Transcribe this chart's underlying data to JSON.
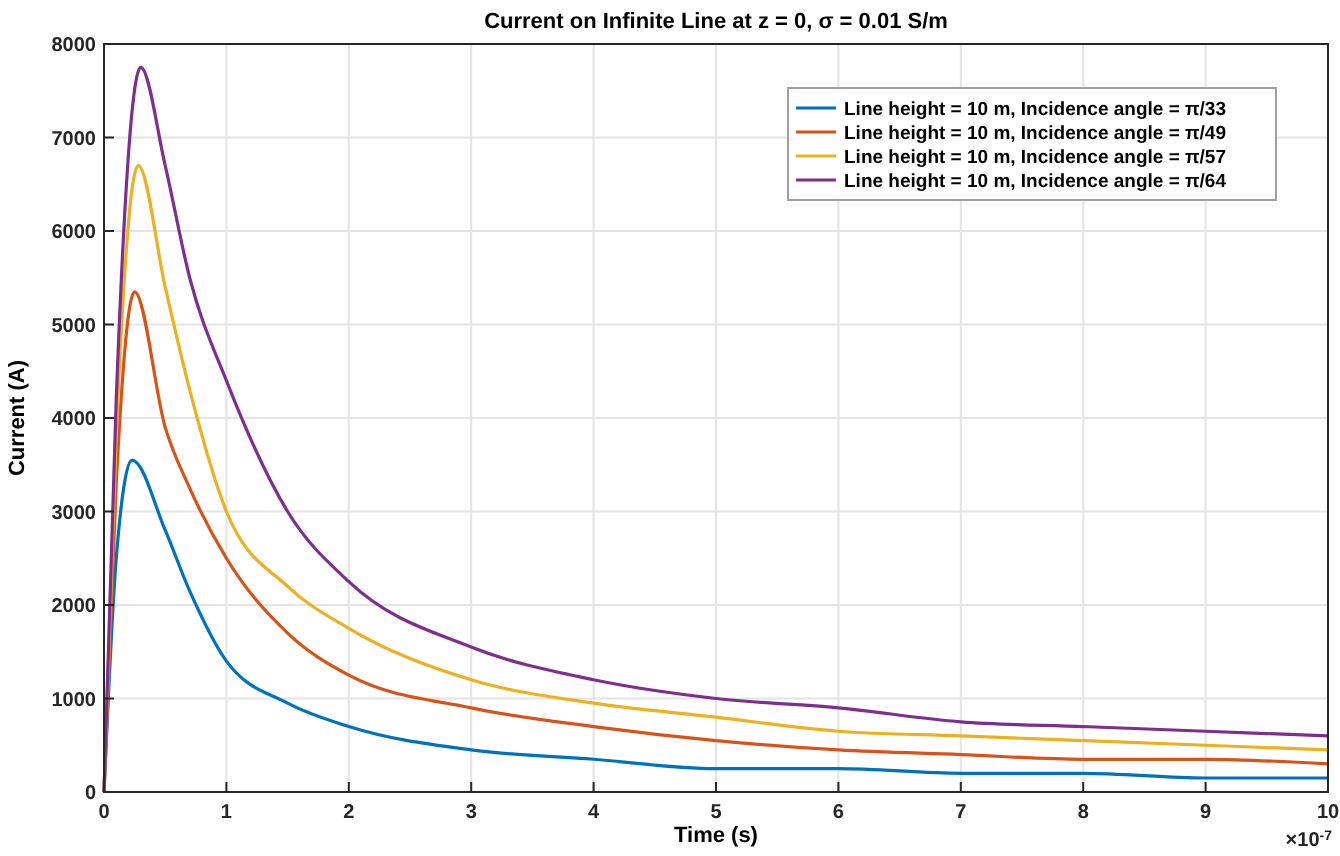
{
  "chart_data": {
    "type": "line",
    "title": "Current on Infinite Line at z = 0, σ = 0.01 S/m",
    "xlabel": "Time (s)",
    "ylabel": "Current (A)",
    "annotations": [
      "×10$^{-7}$"
    ],
    "series": [
      {
        "name": "Line height = 10 m, Incidence angle = π/33",
        "color": "#0072bd",
        "x": [
          0,
          0.1,
          0.23,
          0.5,
          0.7,
          1,
          1.5,
          2,
          3,
          4,
          5,
          6,
          7,
          8,
          9,
          10
        ],
        "values": [
          0,
          2500,
          3550,
          2800,
          2150,
          1400,
          950,
          700,
          450,
          350,
          250,
          250,
          200,
          200,
          150,
          150
        ]
      },
      {
        "name": "Line height = 10 m, Incidence angle = π/49",
        "color": "#d95319",
        "x": [
          0,
          0.1,
          0.25,
          0.5,
          0.7,
          1,
          1.5,
          2,
          3,
          4,
          5,
          6,
          7,
          8,
          9,
          10
        ],
        "values": [
          0,
          3300,
          5350,
          3900,
          3250,
          2500,
          1700,
          1250,
          900,
          700,
          550,
          450,
          400,
          350,
          350,
          300
        ]
      },
      {
        "name": "Line height = 10 m, Incidence angle = π/57",
        "color": "#edb120",
        "x": [
          0,
          0.1,
          0.28,
          0.5,
          0.7,
          1,
          1.5,
          2,
          3,
          4,
          5,
          6,
          7,
          8,
          9,
          10
        ],
        "values": [
          0,
          3800,
          6700,
          5400,
          4300,
          3000,
          2200,
          1750,
          1200,
          950,
          800,
          650,
          600,
          550,
          500,
          450
        ]
      },
      {
        "name": "Line height = 10 m, Incidence angle = π/64",
        "color": "#7e2f8e",
        "x": [
          0,
          0.1,
          0.3,
          0.5,
          0.7,
          1,
          1.5,
          2,
          3,
          4,
          5,
          6,
          7,
          8,
          9,
          10
        ],
        "values": [
          0,
          4200,
          7750,
          6700,
          5500,
          4400,
          3000,
          2250,
          1550,
          1200,
          1000,
          900,
          750,
          700,
          650,
          600
        ]
      }
    ],
    "xlim": [
      0,
      10
    ],
    "ylim": [
      0,
      8000
    ],
    "xticks": [
      0,
      1,
      2,
      3,
      4,
      5,
      6,
      7,
      8,
      9,
      10
    ],
    "yticks": [
      0,
      1000,
      2000,
      3000,
      4000,
      5000,
      6000,
      7000,
      8000
    ],
    "grid": true,
    "legend": "top right",
    "line_style": "solid",
    "marker": "none"
  }
}
